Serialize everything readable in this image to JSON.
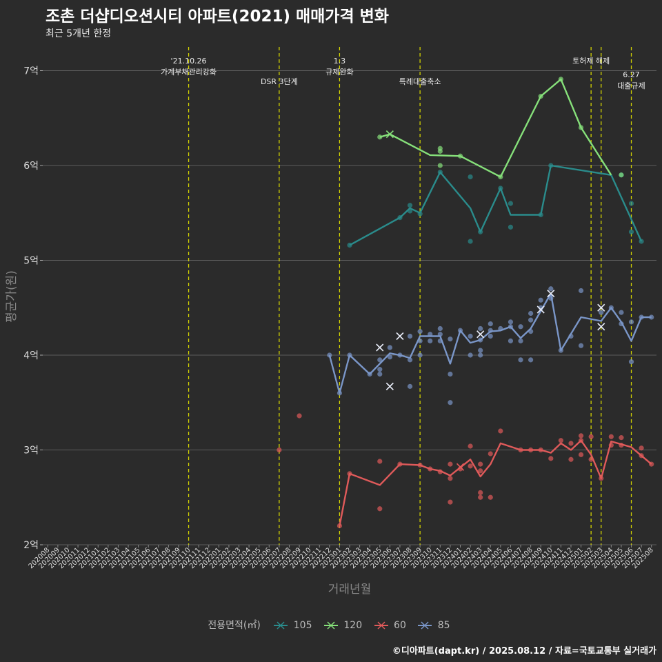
{
  "title": "조촌 더샵디오션시티 아파트(2021) 매매가격 변화",
  "subtitle": "최근 5개년 한정",
  "caption": "©디아파트(dapt.kr) / 2025.08.12 / 자료=국토교통부 실거래가",
  "legend": {
    "title": "전용면적(㎡)",
    "items": [
      {
        "label": "105",
        "color": "#2a8c8c"
      },
      {
        "label": "120",
        "color": "#86e07a"
      },
      {
        "label": "60",
        "color": "#e05a5a"
      },
      {
        "label": "85",
        "color": "#7a96c8"
      }
    ]
  },
  "chart_data": {
    "type": "line",
    "title": "조촌 더샵디오션시티 아파트(2021) 매매가격 변화",
    "subtitle": "최근 5개년 한정",
    "xlabel": "거래년월",
    "ylabel": "평균가(원)",
    "ylim": [
      2,
      7.2
    ],
    "yticks": [
      {
        "v": 2,
        "label": "2억"
      },
      {
        "v": 3,
        "label": "3억"
      },
      {
        "v": 4,
        "label": "4억"
      },
      {
        "v": 5,
        "label": "5억"
      },
      {
        "v": 6,
        "label": "6억"
      },
      {
        "v": 7,
        "label": "7억"
      }
    ],
    "categories": [
      "202008",
      "202009",
      "202010",
      "202011",
      "202012",
      "202101",
      "202102",
      "202103",
      "202104",
      "202105",
      "202106",
      "202107",
      "202108",
      "202109",
      "202110",
      "202111",
      "202112",
      "202201",
      "202202",
      "202203",
      "202204",
      "202205",
      "202206",
      "202207",
      "202208",
      "202209",
      "202210",
      "202211",
      "202212",
      "202301",
      "202302",
      "202303",
      "202304",
      "202305",
      "202306",
      "202307",
      "202308",
      "202309",
      "202310",
      "202311",
      "202312",
      "202401",
      "202402",
      "202403",
      "202404",
      "202405",
      "202406",
      "202407",
      "202408",
      "202409",
      "202410",
      "202411",
      "202412",
      "202501",
      "202502",
      "202503",
      "202504",
      "202505",
      "202506",
      "202507",
      "202508"
    ],
    "events": [
      {
        "x": "202110",
        "label": [
          "'21.10.26",
          "가계부채관리강화"
        ],
        "row": 0
      },
      {
        "x": "202207",
        "label": [
          "DSR 3단계"
        ],
        "row": 1
      },
      {
        "x": "202301",
        "label": [
          "1.3",
          "규제완화"
        ],
        "row": 0
      },
      {
        "x": "202309",
        "label": [
          "특례대출축소"
        ],
        "row": 1
      },
      {
        "x": "202502",
        "label": [
          "토허제 해제"
        ],
        "row": 0
      },
      {
        "x": "202503",
        "label": [],
        "row": 0
      },
      {
        "x": "202506",
        "label": [
          "6.27",
          "대출규제"
        ],
        "row": 2
      }
    ],
    "series": [
      {
        "name": "105",
        "color": "#2a8c8c",
        "line": [
          [
            "202302",
            5.16
          ],
          [
            "202307",
            5.45
          ],
          [
            "202308",
            5.55
          ],
          [
            "202309",
            5.5
          ],
          [
            "202311",
            5.93
          ],
          [
            "202402",
            5.55
          ],
          [
            "202403",
            5.3
          ],
          [
            "202405",
            5.76
          ],
          [
            "202406",
            5.48
          ],
          [
            "202409",
            5.48
          ],
          [
            "202410",
            6.0
          ],
          [
            "202504",
            5.9
          ],
          [
            "202507",
            5.2
          ]
        ],
        "points": [
          [
            "202302",
            5.16
          ],
          [
            "202307",
            5.45
          ],
          [
            "202308",
            5.58
          ],
          [
            "202308",
            5.52
          ],
          [
            "202309",
            5.49
          ],
          [
            "202311",
            5.93
          ],
          [
            "202402",
            5.88
          ],
          [
            "202402",
            5.2
          ],
          [
            "202403",
            5.3
          ],
          [
            "202405",
            5.76
          ],
          [
            "202406",
            5.6
          ],
          [
            "202406",
            5.35
          ],
          [
            "202409",
            5.48
          ],
          [
            "202410",
            6.0
          ],
          [
            "202505",
            5.9
          ],
          [
            "202506",
            5.6
          ],
          [
            "202506",
            5.3
          ],
          [
            "202507",
            5.2
          ]
        ],
        "crosses": []
      },
      {
        "name": "120",
        "color": "#86e07a",
        "line": [
          [
            "202305",
            6.3
          ],
          [
            "202306",
            6.33
          ],
          [
            "202310",
            6.11
          ],
          [
            "202401",
            6.1
          ],
          [
            "202405",
            5.88
          ],
          [
            "202409",
            6.73
          ],
          [
            "202411",
            6.91
          ],
          [
            "202501",
            6.4
          ],
          [
            "202504",
            5.9
          ]
        ],
        "points": [
          [
            "202305",
            6.3
          ],
          [
            "202311",
            6.18
          ],
          [
            "202311",
            6.15
          ],
          [
            "202311",
            6.0
          ],
          [
            "202401",
            6.1
          ],
          [
            "202405",
            5.88
          ],
          [
            "202409",
            6.73
          ],
          [
            "202411",
            6.91
          ],
          [
            "202501",
            6.4
          ],
          [
            "202505",
            5.9
          ]
        ],
        "crosses": [
          [
            "202306",
            6.33
          ]
        ]
      },
      {
        "name": "60",
        "color": "#e05a5a",
        "line": [
          [
            "202301",
            2.2
          ],
          [
            "202302",
            2.75
          ],
          [
            "202305",
            2.63
          ],
          [
            "202307",
            2.85
          ],
          [
            "202309",
            2.84
          ],
          [
            "202310",
            2.8
          ],
          [
            "202311",
            2.78
          ],
          [
            "202312",
            2.73
          ],
          [
            "202402",
            2.9
          ],
          [
            "202403",
            2.72
          ],
          [
            "202404",
            2.85
          ],
          [
            "202405",
            3.07
          ],
          [
            "202407",
            3.0
          ],
          [
            "202409",
            3.0
          ],
          [
            "202410",
            2.97
          ],
          [
            "202411",
            3.07
          ],
          [
            "202412",
            3.0
          ],
          [
            "202501",
            3.1
          ],
          [
            "202502",
            2.95
          ],
          [
            "202503",
            2.7
          ],
          [
            "202504",
            3.09
          ],
          [
            "202506",
            3.03
          ],
          [
            "202508",
            2.85
          ]
        ],
        "points": [
          [
            "202207",
            3.0
          ],
          [
            "202209",
            3.36
          ],
          [
            "202301",
            2.2
          ],
          [
            "202302",
            2.75
          ],
          [
            "202305",
            2.88
          ],
          [
            "202305",
            2.38
          ],
          [
            "202307",
            2.85
          ],
          [
            "202309",
            2.84
          ],
          [
            "202310",
            2.8
          ],
          [
            "202311",
            2.77
          ],
          [
            "202312",
            2.85
          ],
          [
            "202312",
            2.7
          ],
          [
            "202312",
            2.45
          ],
          [
            "202401",
            2.8
          ],
          [
            "202402",
            3.04
          ],
          [
            "202402",
            2.83
          ],
          [
            "202403",
            2.85
          ],
          [
            "202403",
            2.78
          ],
          [
            "202403",
            2.55
          ],
          [
            "202403",
            2.5
          ],
          [
            "202404",
            2.96
          ],
          [
            "202404",
            2.5
          ],
          [
            "202405",
            3.2
          ],
          [
            "202407",
            3.0
          ],
          [
            "202408",
            3.0
          ],
          [
            "202409",
            3.0
          ],
          [
            "202410",
            2.91
          ],
          [
            "202411",
            3.1
          ],
          [
            "202412",
            3.07
          ],
          [
            "202412",
            2.9
          ],
          [
            "202501",
            3.15
          ],
          [
            "202501",
            3.1
          ],
          [
            "202501",
            2.95
          ],
          [
            "202502",
            3.14
          ],
          [
            "202502",
            2.9
          ],
          [
            "202503",
            2.7
          ],
          [
            "202504",
            3.14
          ],
          [
            "202504",
            3.05
          ],
          [
            "202505",
            3.13
          ],
          [
            "202505",
            3.05
          ],
          [
            "202507",
            3.02
          ],
          [
            "202507",
            2.94
          ],
          [
            "202508",
            2.85
          ]
        ],
        "crosses": [
          [
            "202401",
            2.82
          ]
        ]
      },
      {
        "name": "85",
        "color": "#7a96c8",
        "line": [
          [
            "202212",
            4.0
          ],
          [
            "202301",
            3.6
          ],
          [
            "202302",
            4.0
          ],
          [
            "202304",
            3.8
          ],
          [
            "202306",
            4.02
          ],
          [
            "202307",
            4.0
          ],
          [
            "202308",
            3.97
          ],
          [
            "202309",
            4.2
          ],
          [
            "202311",
            4.2
          ],
          [
            "202312",
            3.91
          ],
          [
            "202401",
            4.26
          ],
          [
            "202402",
            4.13
          ],
          [
            "202403",
            4.16
          ],
          [
            "202404",
            4.25
          ],
          [
            "202405",
            4.26
          ],
          [
            "202406",
            4.3
          ],
          [
            "202407",
            4.18
          ],
          [
            "202408",
            4.28
          ],
          [
            "202410",
            4.65
          ],
          [
            "202411",
            4.05
          ],
          [
            "202501",
            4.4
          ],
          [
            "202503",
            4.36
          ],
          [
            "202504",
            4.5
          ],
          [
            "202505",
            4.35
          ],
          [
            "202506",
            4.15
          ],
          [
            "202507",
            4.4
          ],
          [
            "202508",
            4.4
          ]
        ],
        "points": [
          [
            "202212",
            4.0
          ],
          [
            "202301",
            3.6
          ],
          [
            "202302",
            4.0
          ],
          [
            "202304",
            3.8
          ],
          [
            "202305",
            3.95
          ],
          [
            "202305",
            3.85
          ],
          [
            "202305",
            3.8
          ],
          [
            "202306",
            4.08
          ],
          [
            "202306",
            3.98
          ],
          [
            "202307",
            4.0
          ],
          [
            "202308",
            4.2
          ],
          [
            "202308",
            3.95
          ],
          [
            "202308",
            3.67
          ],
          [
            "202309",
            4.25
          ],
          [
            "202309",
            4.15
          ],
          [
            "202309",
            4.0
          ],
          [
            "202310",
            4.22
          ],
          [
            "202310",
            4.15
          ],
          [
            "202311",
            4.28
          ],
          [
            "202311",
            4.22
          ],
          [
            "202311",
            4.15
          ],
          [
            "202312",
            4.17
          ],
          [
            "202312",
            3.8
          ],
          [
            "202312",
            3.5
          ],
          [
            "202401",
            4.26
          ],
          [
            "202402",
            4.2
          ],
          [
            "202402",
            4.0
          ],
          [
            "202403",
            4.28
          ],
          [
            "202403",
            4.16
          ],
          [
            "202403",
            4.05
          ],
          [
            "202403",
            4.0
          ],
          [
            "202404",
            4.33
          ],
          [
            "202404",
            4.26
          ],
          [
            "202404",
            4.2
          ],
          [
            "202405",
            4.28
          ],
          [
            "202406",
            4.35
          ],
          [
            "202406",
            4.3
          ],
          [
            "202406",
            4.15
          ],
          [
            "202407",
            4.3
          ],
          [
            "202407",
            4.15
          ],
          [
            "202407",
            3.95
          ],
          [
            "202408",
            4.44
          ],
          [
            "202408",
            4.37
          ],
          [
            "202408",
            4.25
          ],
          [
            "202408",
            3.95
          ],
          [
            "202409",
            4.58
          ],
          [
            "202409",
            4.5
          ],
          [
            "202410",
            4.7
          ],
          [
            "202410",
            4.6
          ],
          [
            "202411",
            4.05
          ],
          [
            "202412",
            4.2
          ],
          [
            "202501",
            4.68
          ],
          [
            "202501",
            4.1
          ],
          [
            "202503",
            4.45
          ],
          [
            "202504",
            4.5
          ],
          [
            "202505",
            4.45
          ],
          [
            "202505",
            4.33
          ],
          [
            "202506",
            4.35
          ],
          [
            "202506",
            3.93
          ],
          [
            "202507",
            4.4
          ],
          [
            "202508",
            4.4
          ]
        ],
        "crosses": [
          [
            "202305",
            4.08
          ],
          [
            "202306",
            3.67
          ],
          [
            "202307",
            4.2
          ],
          [
            "202403",
            4.22
          ],
          [
            "202409",
            4.48
          ],
          [
            "202410",
            4.65
          ],
          [
            "202503",
            4.5
          ],
          [
            "202503",
            4.3
          ]
        ]
      }
    ]
  }
}
